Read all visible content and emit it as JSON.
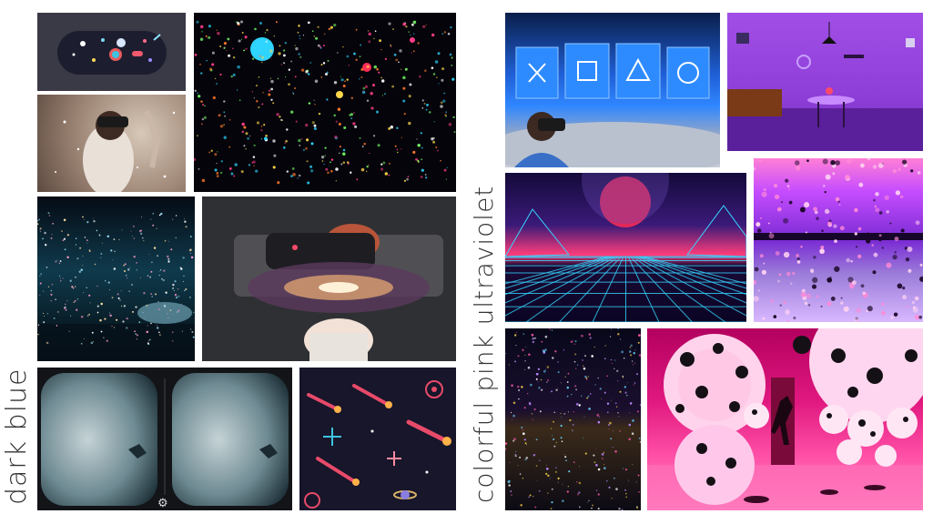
{
  "labels": {
    "left": "dark blue",
    "right": "colorful pink ultraviolet"
  },
  "colors": {
    "background": "#ffffff",
    "dark_navy": "#0b0d1f",
    "deep_teal": "#0d2a3a",
    "ultraviolet": "#7a3fd1",
    "hot_pink": "#ff2d95",
    "cyan": "#27c9e8",
    "label_text": "#333333"
  },
  "tiles": [
    {
      "id": "space-icons-pill",
      "group": "dark-blue",
      "icon": "galaxy-icons"
    },
    {
      "id": "vr-woman-stardust",
      "group": "dark-blue",
      "icon": "vr-headset"
    },
    {
      "id": "infinity-room-dots",
      "group": "dark-blue",
      "icon": "starfield"
    },
    {
      "id": "infinity-mirror-teal",
      "group": "dark-blue",
      "icon": "starfield"
    },
    {
      "id": "vr-galaxy-woman",
      "group": "dark-blue",
      "icon": "vr-headset"
    },
    {
      "id": "cardboard-vr-clouds",
      "group": "dark-blue",
      "icon": "gear-icon"
    },
    {
      "id": "comets-pattern",
      "group": "dark-blue",
      "icon": "comet-icons"
    },
    {
      "id": "vr-dome-playstation",
      "group": "pink-ultraviolet",
      "icon": "playstation-symbols"
    },
    {
      "id": "purple-dining-room",
      "group": "pink-ultraviolet",
      "icon": "room"
    },
    {
      "id": "synthwave-grid",
      "group": "pink-ultraviolet",
      "icon": "retro-sun"
    },
    {
      "id": "kusama-mirror-dots",
      "group": "pink-ultraviolet",
      "icon": "dots"
    },
    {
      "id": "infinity-room-lights",
      "group": "pink-ultraviolet",
      "icon": "starfield"
    },
    {
      "id": "pink-polka-balloons",
      "group": "pink-ultraviolet",
      "icon": "balloons"
    }
  ]
}
